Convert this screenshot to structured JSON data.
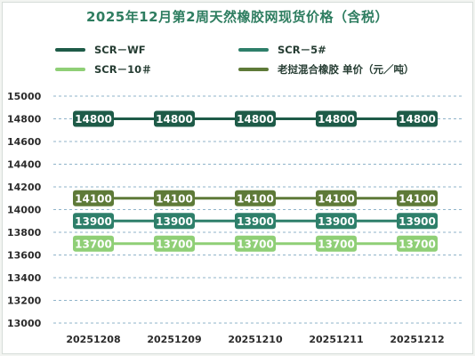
{
  "title": "2025年12月第2周天然橡胶网现货价格（含税）",
  "colors": {
    "title": "#2e7d60"
  },
  "chart_data": {
    "type": "line",
    "title": "2025年12月第2周天然橡胶网现货价格（含税）",
    "categories": [
      "20251208",
      "20251209",
      "20251210",
      "20251211",
      "20251212"
    ],
    "ylim": [
      13000,
      15000
    ],
    "yticks": [
      13000,
      13200,
      13400,
      13600,
      13800,
      14000,
      14200,
      14400,
      14600,
      14800,
      15000
    ],
    "grid": true,
    "legend_position": "top",
    "series": [
      {
        "name": "SCR－WF",
        "values": [
          14800,
          14800,
          14800,
          14800,
          14800
        ],
        "color": "#1e5b48"
      },
      {
        "name": "SCR－5#",
        "values": [
          13900,
          13900,
          13900,
          13900,
          13900
        ],
        "color": "#2e7f6a"
      },
      {
        "name": "SCR－10＃",
        "values": [
          13700,
          13700,
          13700,
          13700,
          13700
        ],
        "color": "#8fcf76"
      },
      {
        "name": "老挝混合橡胶 单价（元／吨）",
        "values": [
          14100,
          14100,
          14100,
          14100,
          14100
        ],
        "color": "#5e7a38"
      }
    ]
  }
}
